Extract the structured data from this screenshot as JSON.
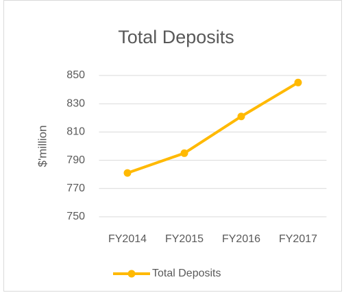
{
  "chart_data": {
    "type": "line",
    "title": "Total Deposits",
    "ylabel": "$'million",
    "categories": [
      "FY2014",
      "FY2015",
      "FY2016",
      "FY2017"
    ],
    "series": [
      {
        "name": "Total Deposits",
        "color": "#ffb900",
        "values": [
          781,
          795,
          821,
          845
        ]
      }
    ],
    "ylim": [
      750,
      850
    ],
    "yticks": [
      750,
      770,
      790,
      810,
      830,
      850
    ],
    "grid": true,
    "legend": "bottom"
  }
}
